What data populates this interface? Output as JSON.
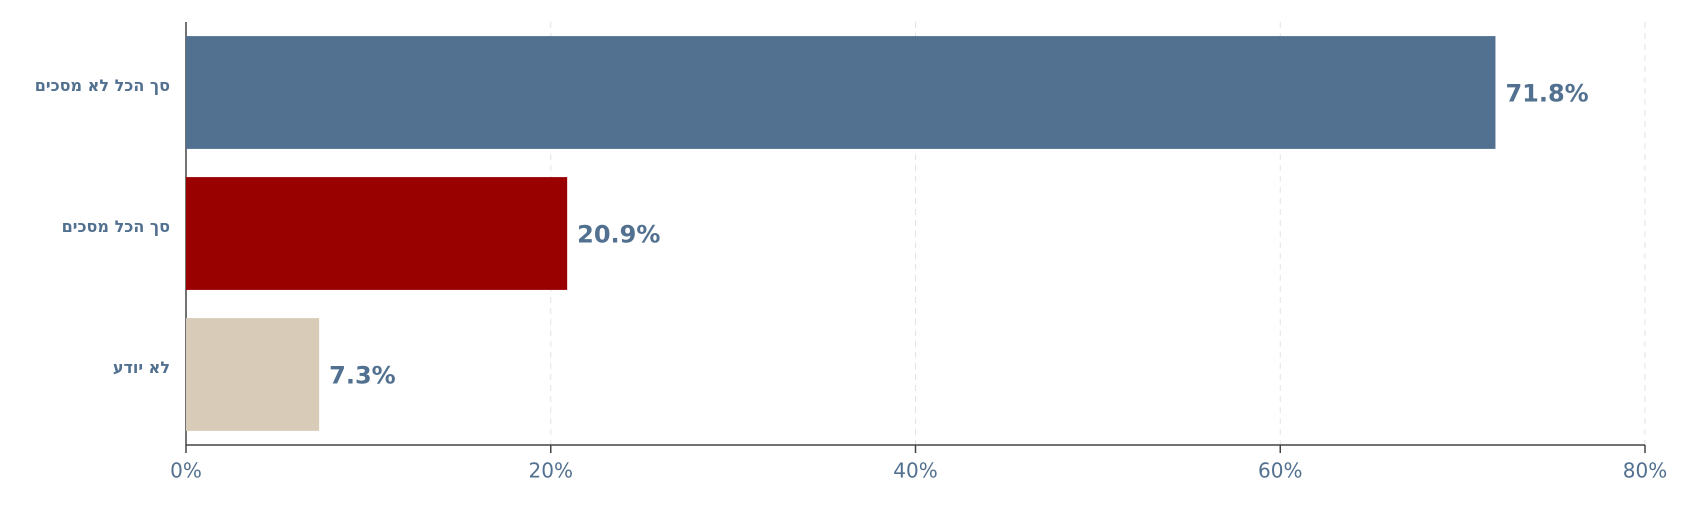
{
  "chart_data": {
    "type": "hbar",
    "categories": [
      "סך הכל לא מסכים",
      "סך הכל מסכים",
      "לא יודע"
    ],
    "values": [
      71.8,
      20.9,
      7.3
    ],
    "value_labels": [
      "71.8%",
      "20.9%",
      "7.3%"
    ],
    "colors": [
      "#52708f",
      "#990000",
      "#d8ccb8"
    ],
    "xlim": [
      0,
      80
    ],
    "xticks": [
      {
        "value": 0,
        "label": "0%"
      },
      {
        "value": 20,
        "label": "20%"
      },
      {
        "value": 40,
        "label": "40%"
      },
      {
        "value": 60,
        "label": "60%"
      },
      {
        "value": 80,
        "label": "80%"
      }
    ],
    "grid": true
  }
}
